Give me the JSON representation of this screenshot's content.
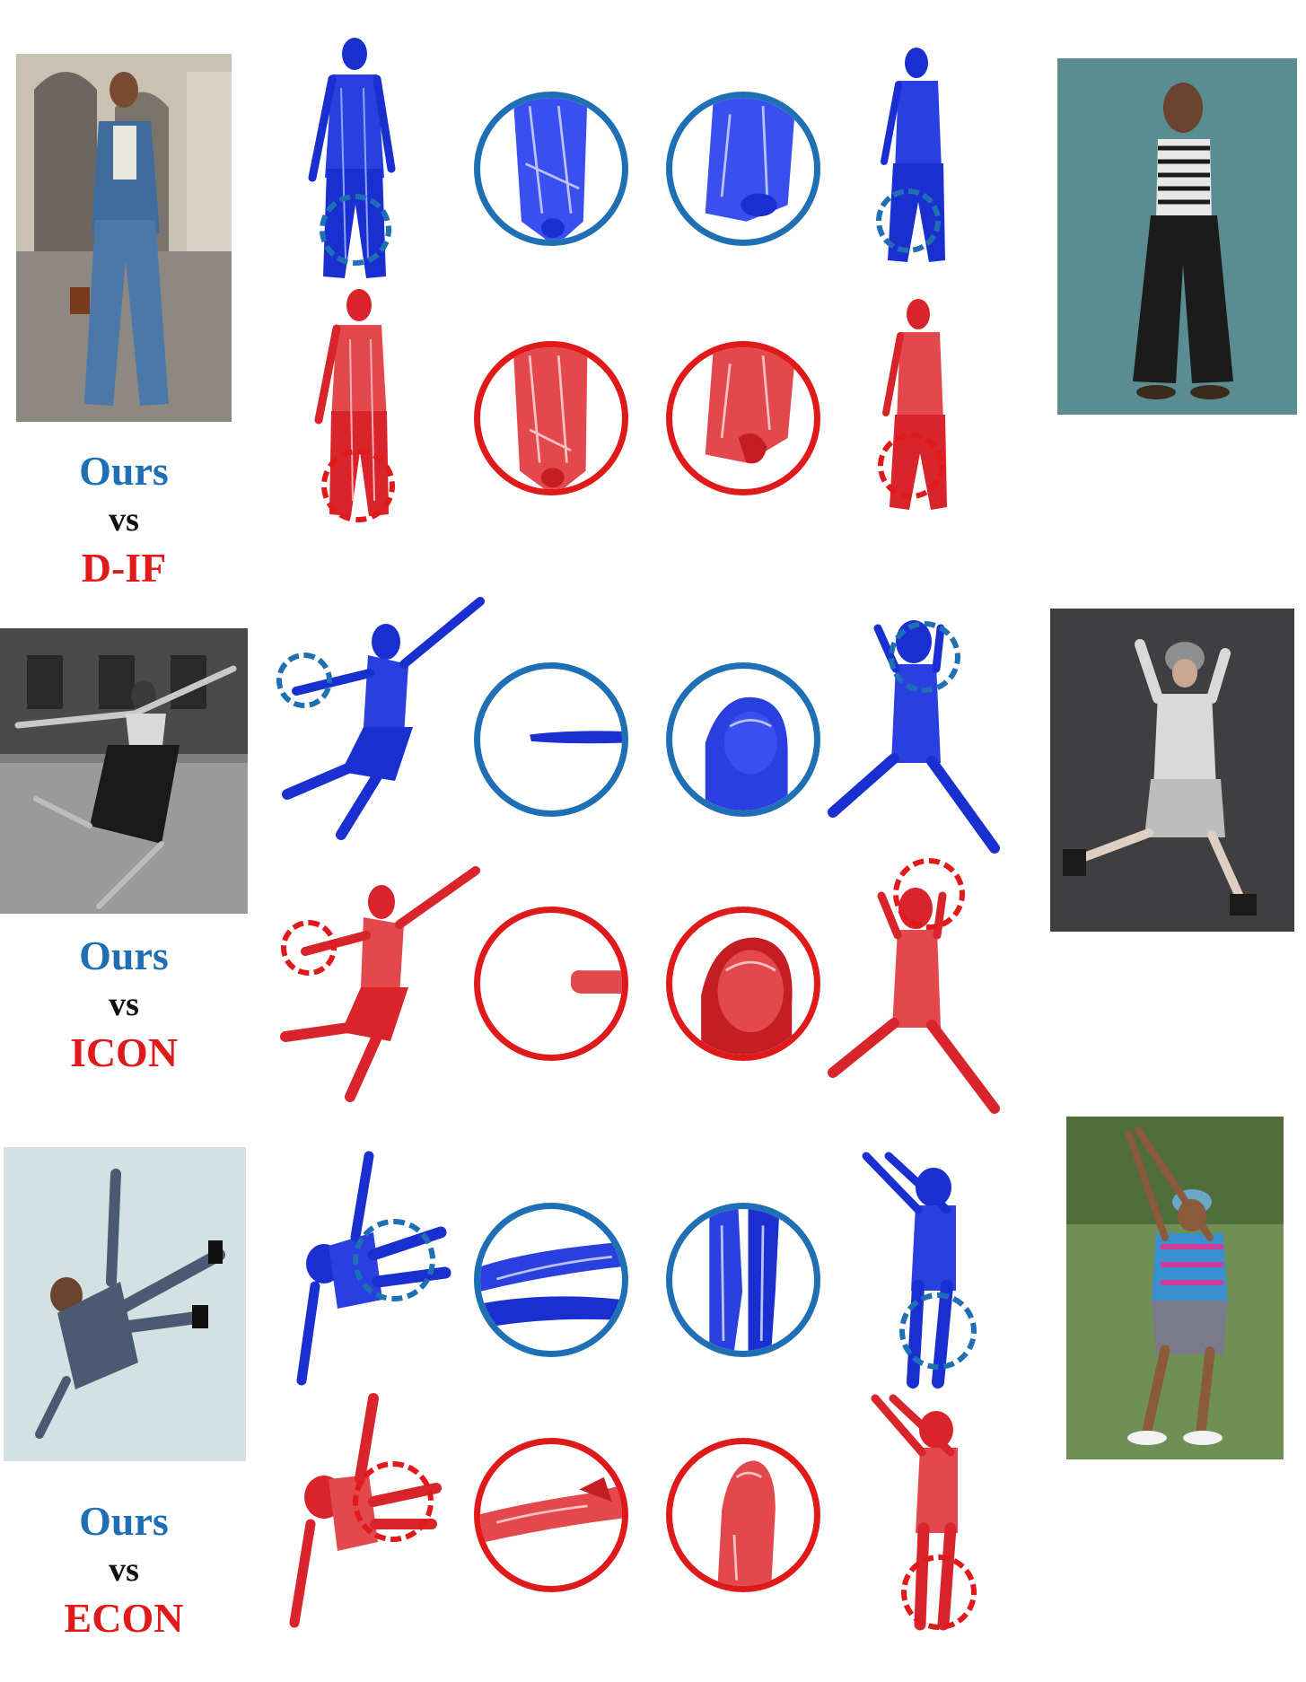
{
  "colors": {
    "ours": "#1f6fb5",
    "baseline": "#e01a1a",
    "mesh_blue": "#1a2fcf",
    "mesh_red": "#d8242a"
  },
  "groups": [
    {
      "ours_label": "Ours",
      "vs_label": "vs",
      "method_label": "D-IF"
    },
    {
      "ours_label": "Ours",
      "vs_label": "vs",
      "method_label": "ICON"
    },
    {
      "ours_label": "Ours",
      "vs_label": "vs",
      "method_label": "ECON"
    }
  ]
}
